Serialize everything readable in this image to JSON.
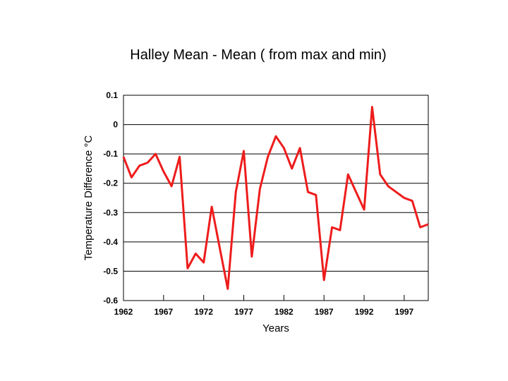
{
  "chart_data": {
    "type": "line",
    "title": "Halley Mean - Mean ( from max and min)",
    "xlabel": "Years",
    "ylabel": "Temperature Difference °C",
    "xlim": [
      1962,
      2000
    ],
    "ylim": [
      -0.6,
      0.1
    ],
    "x_ticks": [
      1962,
      1967,
      1972,
      1977,
      1982,
      1987,
      1992,
      1997
    ],
    "x_tick_labels": [
      "1962",
      "1967",
      "1972",
      "1977",
      "1982",
      "1987",
      "1992",
      "1997"
    ],
    "y_ticks": [
      0.1,
      0,
      -0.1,
      -0.2,
      -0.3,
      -0.4,
      -0.5,
      -0.6
    ],
    "y_tick_labels": [
      "0.1",
      "0",
      "-0.1",
      "-0.2",
      "-0.3",
      "-0.4",
      "-0.5",
      "-0.6"
    ],
    "grid": "horizontal",
    "series": [
      {
        "color": "#ee1c1c",
        "x": [
          1962,
          1963,
          1964,
          1965,
          1966,
          1967,
          1968,
          1969,
          1970,
          1971,
          1972,
          1973,
          1974,
          1975,
          1976,
          1977,
          1978,
          1979,
          1980,
          1981,
          1982,
          1983,
          1984,
          1985,
          1986,
          1987,
          1988,
          1989,
          1990,
          1991,
          1992,
          1993,
          1994,
          1995,
          1996,
          1997,
          1998,
          1999,
          2000
        ],
        "y": [
          -0.11,
          -0.18,
          -0.14,
          -0.13,
          -0.1,
          -0.16,
          -0.21,
          -0.11,
          -0.49,
          -0.44,
          -0.47,
          -0.28,
          -0.42,
          -0.56,
          -0.23,
          -0.09,
          -0.45,
          -0.22,
          -0.11,
          -0.04,
          -0.08,
          -0.15,
          -0.08,
          -0.23,
          -0.24,
          -0.53,
          -0.35,
          -0.36,
          -0.17,
          -0.23,
          -0.29,
          0.06,
          -0.17,
          -0.21,
          -0.23,
          -0.25,
          -0.26,
          -0.35,
          -0.34
        ]
      }
    ]
  }
}
